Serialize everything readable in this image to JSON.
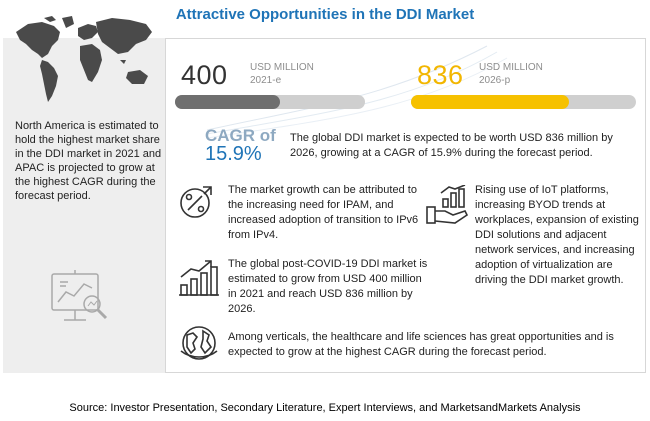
{
  "title": "Attractive Opportunities in the DDI Market",
  "left": {
    "map_icon": "world-map-icon",
    "text": "North America is estimated to hold the highest market share in the DDI market in 2021 and APAC is projected to grow at the highest CAGR during the forecast period.",
    "bottom_icon": "data-analysis-icon"
  },
  "stats": {
    "start": {
      "value": "400",
      "unit": "USD MILLION",
      "year": "2021-e",
      "bar_fraction": 0.55,
      "bar_color": "#6f6f6f"
    },
    "end": {
      "value": "836",
      "unit": "USD MILLION",
      "year": "2026-p",
      "bar_fraction": 0.7,
      "bar_color": "#f6c100"
    }
  },
  "cagr": {
    "label": "CAGR of",
    "value": "15.9%",
    "description": "The global DDI market is expected to be worth USD 836 million by 2026, growing at a CAGR of 15.9% during the forecast period."
  },
  "insights": {
    "growth": {
      "icon": "percent-growth-icon",
      "text": "The market growth can be attributed to the increasing need for IPAM, and increased adoption of transition to IPv6 from IPv4."
    },
    "covid": {
      "icon": "bar-chart-growth-icon",
      "text": "The global post-COVID-19 DDI market is estimated to grow from USD 400 million in 2021 and reach USD 836 million by 2026."
    },
    "iot": {
      "icon": "hand-growth-icon",
      "text": "Rising use of IoT platforms, increasing BYOD trends at workplaces, expansion of existing DDI solutions and adjacent network services, and increasing adoption of virtualization are driving the DDI market growth."
    },
    "verticals": {
      "icon": "healthcare-globe-icon",
      "text": "Among verticals, the healthcare  and life sciences has great opportunities and is expected to grow at the highest CAGR during the forecast period."
    }
  },
  "source": "Source: Investor Presentation, Secondary Literature, Expert Interviews, and MarketsandMarkets Analysis",
  "colors": {
    "title": "#1f74b7",
    "gold": "#f6c100",
    "gray_bar": "#6f6f6f",
    "cagr_value": "#1f74b7"
  }
}
